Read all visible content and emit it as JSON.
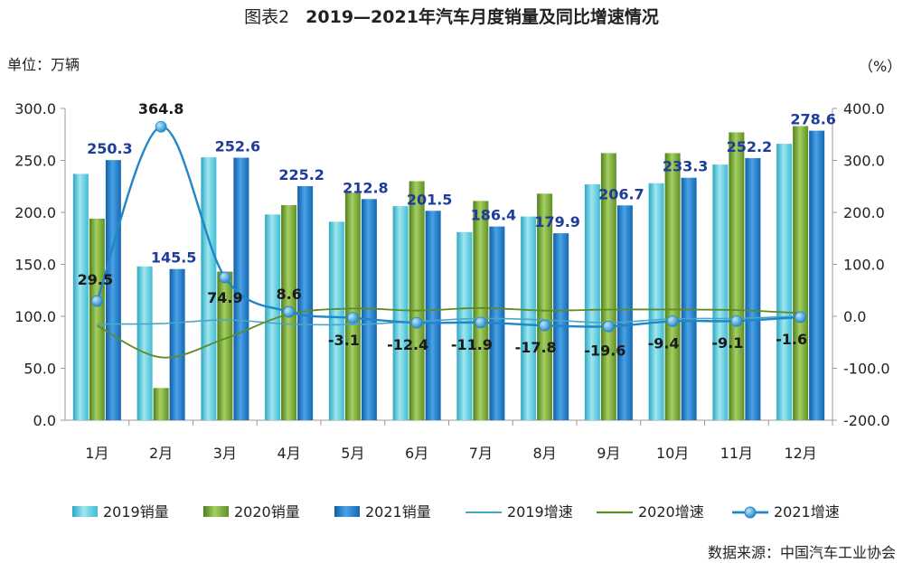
{
  "title_prefix": "图表2",
  "title": "2019—2021年汽车月度销量及同比增速情况",
  "unit_left": "单位：万辆",
  "unit_right": "（%）",
  "source": "数据来源：中国汽车工业协会",
  "chart_data": {
    "type": "bar",
    "categories": [
      "1月",
      "2月",
      "3月",
      "4月",
      "5月",
      "6月",
      "7月",
      "8月",
      "9月",
      "10月",
      "11月",
      "12月"
    ],
    "ylim_left": [
      0,
      300
    ],
    "yticks_left": [
      "0.0",
      "50.0",
      "100.0",
      "150.0",
      "200.0",
      "250.0",
      "300.0"
    ],
    "ylim_right": [
      -200,
      400
    ],
    "yticks_right": [
      "-200.0",
      "-100.0",
      "0.0",
      "100.0",
      "200.0",
      "300.0",
      "400.0"
    ],
    "bar_series": [
      {
        "name": "2019销量",
        "color": "#4bc6d9",
        "values": [
          237,
          148,
          253,
          198,
          191,
          206,
          181,
          196,
          227,
          228,
          246,
          266
        ]
      },
      {
        "name": "2020销量",
        "color": "#6e9e2c",
        "values": [
          194,
          31,
          143,
          207,
          219,
          230,
          211,
          218,
          257,
          257,
          277,
          283
        ]
      },
      {
        "name": "2021销量",
        "color": "#1d78c8",
        "values": [
          250.3,
          145.5,
          252.6,
          225.2,
          212.8,
          201.5,
          186.4,
          179.9,
          206.7,
          233.3,
          252.2,
          278.6
        ]
      }
    ],
    "bar_labels_2021": [
      "250.3",
      "145.5",
      "252.6",
      "225.2",
      "212.8",
      "201.5",
      "186.4",
      "179.9",
      "206.7",
      "233.3",
      "252.2",
      "278.6"
    ],
    "line_series": [
      {
        "name": "2019增速",
        "color": "#4aa6c8",
        "values": [
          -15,
          -14,
          -7,
          -15,
          -16,
          -10,
          -4,
          -7,
          -12,
          -5,
          -4,
          0
        ]
      },
      {
        "name": "2020增速",
        "color": "#5d8a2a",
        "values": [
          -18,
          -79,
          -43,
          4,
          15,
          11,
          16,
          11,
          13,
          13,
          12,
          6
        ]
      },
      {
        "name": "2021增速",
        "color": "#1f86c8",
        "values": [
          29.5,
          364.8,
          74.9,
          8.6,
          -3.1,
          -12.4,
          -11.9,
          -17.8,
          -19.6,
          -9.4,
          -9.1,
          -1.6
        ]
      }
    ],
    "line_labels_2021": [
      "29.5",
      "364.8",
      "74.9",
      "8.6",
      "-3.1",
      "-12.4",
      "-11.9",
      "-17.8",
      "-19.6",
      "-9.4",
      "-9.1",
      "-1.6"
    ],
    "legend_position": "bottom",
    "grid": false
  }
}
